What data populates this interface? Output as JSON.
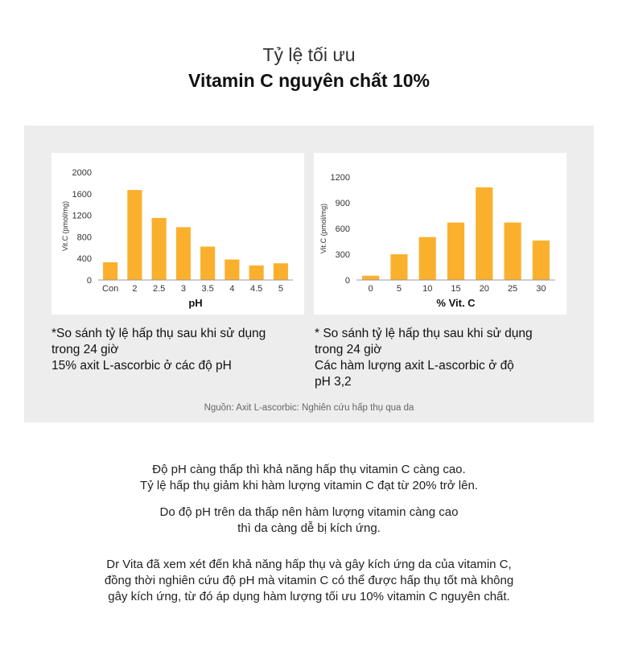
{
  "header": {
    "title_line1": "Tỷ lệ tối ưu",
    "title_line2": "Vitamin C nguyên chất 10%"
  },
  "chart_data": [
    {
      "type": "bar",
      "categories": [
        "Con",
        "2",
        "2.5",
        "3",
        "3.5",
        "4",
        "4.5",
        "5"
      ],
      "values": [
        330,
        1670,
        1150,
        980,
        620,
        380,
        270,
        310
      ],
      "xlabel": "pH",
      "ylabel": "Vit.C (pmol/mg)",
      "ylim": [
        0,
        2000
      ],
      "yticks": [
        "0",
        "400",
        "800",
        "1200",
        "1600",
        "2000"
      ],
      "bar_color": "#fbb02d"
    },
    {
      "type": "bar",
      "categories": [
        "0",
        "5",
        "10",
        "15",
        "20",
        "25",
        "30"
      ],
      "values": [
        50,
        300,
        500,
        670,
        1080,
        670,
        460
      ],
      "xlabel": "% Vit. C",
      "ylabel": "Vit.C (pmol/mg)",
      "ylim": [
        0,
        1200
      ],
      "yticks": [
        "0",
        "300",
        "600",
        "900",
        "1200"
      ],
      "bar_color": "#fbb02d"
    }
  ],
  "captions": {
    "left": [
      "*So sánh tỷ lệ hấp thụ sau khi sử dụng",
      "trong 24 giờ",
      "15% axit L-ascorbic ở các độ pH"
    ],
    "right": [
      "* So sánh tỷ lệ hấp thụ sau khi sử dụng",
      "trong 24 giờ",
      "Các hàm lượng axit L-ascorbic ở độ",
      "pH 3,2"
    ]
  },
  "source": "Nguồn: Axit L-ascorbic: Nghiên cứu hấp thụ qua da",
  "body": {
    "p1": [
      "Độ pH càng thấp thì khả năng hấp thụ vitamin C càng cao.",
      "Tỷ lệ hấp thụ giảm khi hàm lượng vitamin C đạt từ 20% trở lên."
    ],
    "p2": [
      "Do độ pH trên da thấp nên hàm lượng vitamin càng cao",
      "thì da càng dễ bị kích ứng."
    ],
    "p3": [
      "Dr Vita đã xem xét đến khả năng hấp thụ và gây kích ứng da của vitamin C,",
      "đồng thời nghiên cứu độ pH mà vitamin C có thể được hấp thụ tốt mà không",
      "gây kích ứng, từ đó áp dụng hàm lượng tối ưu 10% vitamin C nguyên chất."
    ]
  }
}
